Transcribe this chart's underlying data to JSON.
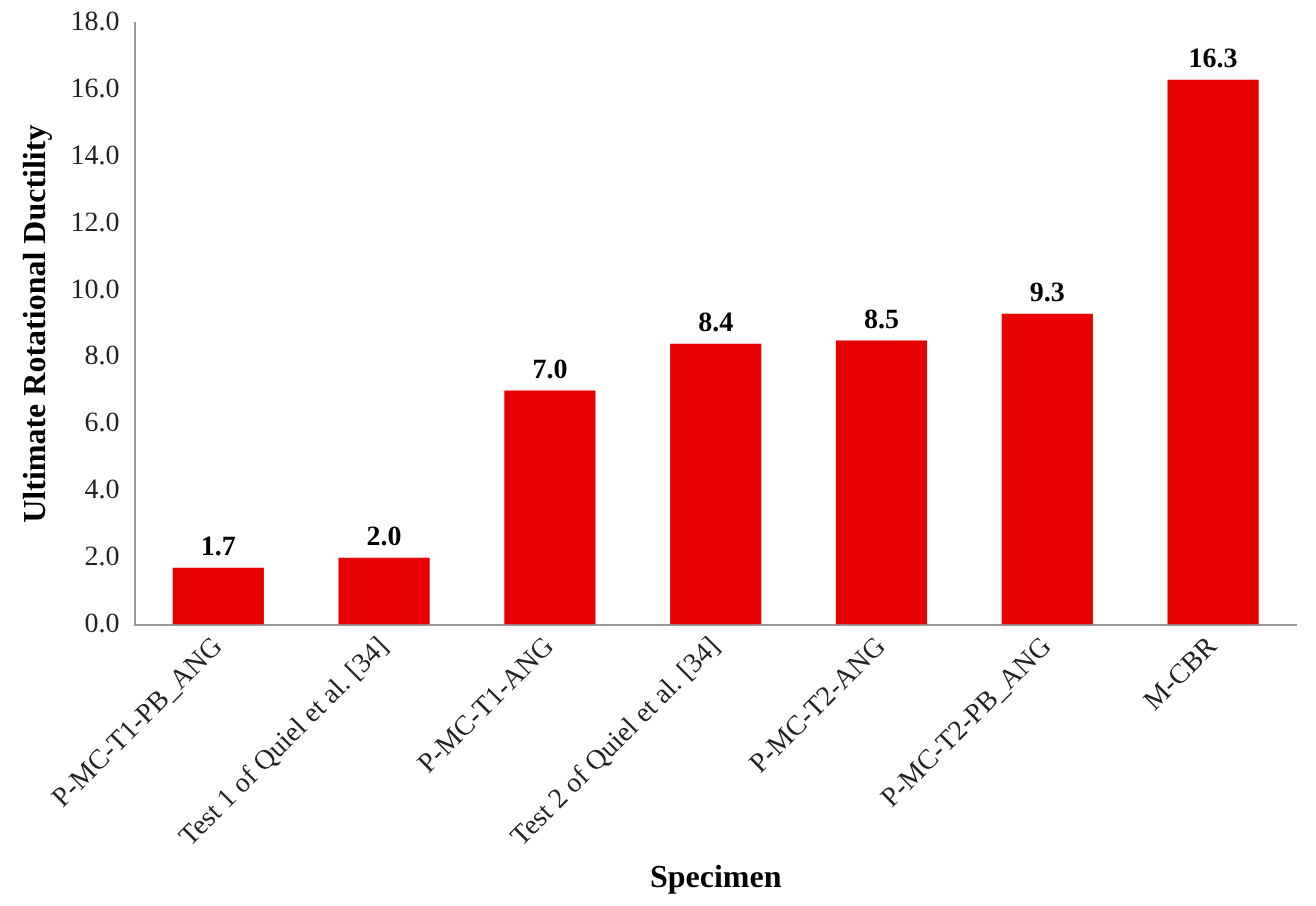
{
  "chart_data": {
    "type": "bar",
    "xlabel": "Specimen",
    "ylabel": "Ultimate Rotational Ductility",
    "categories": [
      "P-MC-T1-PB_ANG",
      "Test 1 of Quiel et al. [34]",
      "P-MC-T1-ANG",
      "Test 2 of Quiel et al. [34]",
      "P-MC-T2-ANG",
      "P-MC-T2-PB_ANG",
      "M-CBR"
    ],
    "values": [
      1.7,
      2.0,
      7.0,
      8.4,
      8.5,
      9.3,
      16.3
    ],
    "value_labels": [
      "1.7",
      "2.0",
      "7.0",
      "8.4",
      "8.5",
      "9.3",
      "16.3"
    ],
    "color": "#e60000",
    "ylim": [
      0,
      18
    ],
    "yticks": [
      {
        "value": 0,
        "label": "0.0"
      },
      {
        "value": 2,
        "label": "2.0"
      },
      {
        "value": 4,
        "label": "4.0"
      },
      {
        "value": 6,
        "label": "6.0"
      },
      {
        "value": 8,
        "label": "8.0"
      },
      {
        "value": 10,
        "label": "10.0"
      },
      {
        "value": 12,
        "label": "12.0"
      },
      {
        "value": 14,
        "label": "14.0"
      },
      {
        "value": 16,
        "label": "16.0"
      },
      {
        "value": 18,
        "label": "18.0"
      }
    ],
    "grid": false,
    "legend": false
  }
}
